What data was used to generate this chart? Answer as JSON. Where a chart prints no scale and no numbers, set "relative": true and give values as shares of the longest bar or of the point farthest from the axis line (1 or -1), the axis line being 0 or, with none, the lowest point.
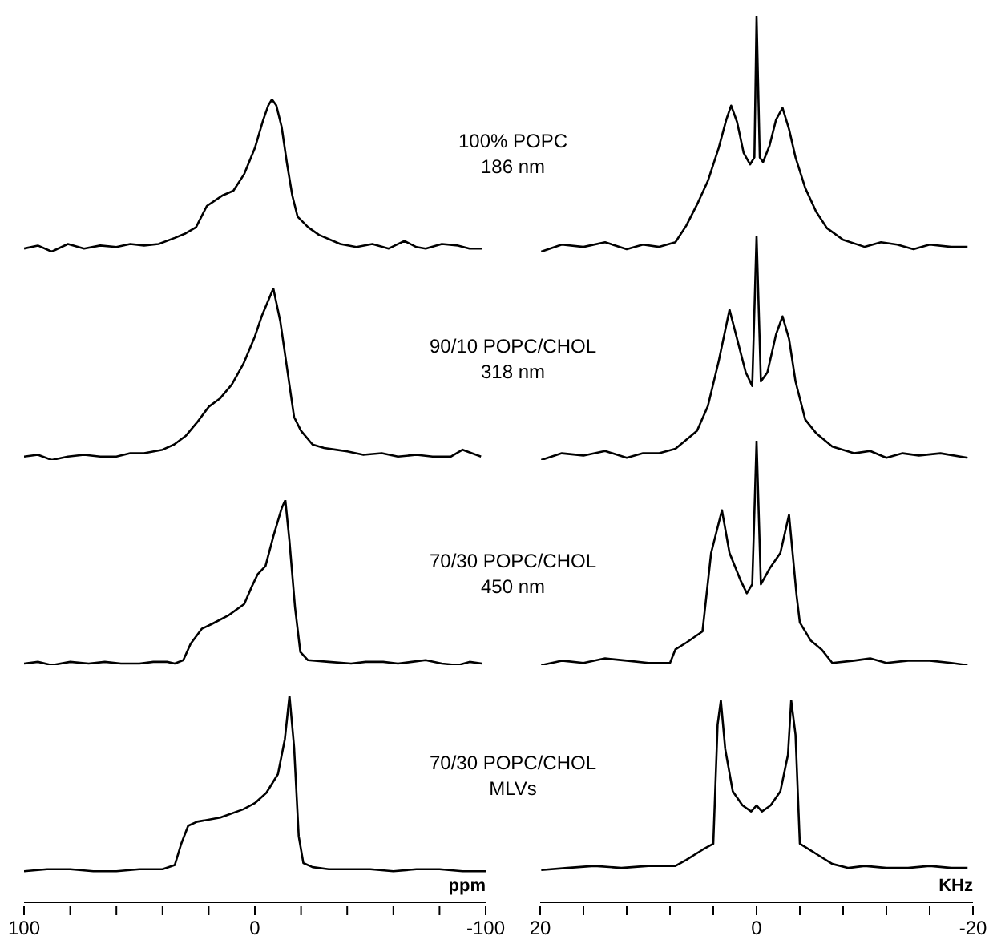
{
  "chart_data": [
    {
      "type": "line",
      "relative": true,
      "xlim": [
        100,
        -100
      ],
      "tick_labels": false,
      "color": "#000000",
      "marker": "none",
      "x": [
        100,
        94,
        88,
        81,
        74,
        67,
        60,
        54,
        48,
        41.7,
        34.7,
        30,
        25.5,
        20.8,
        13.9,
        9.3,
        4.6,
        0,
        -3.5,
        -5.8,
        -7.4,
        -9.3,
        -11.6,
        -13.9,
        -16.2,
        -18.5,
        -23.1,
        -27.8,
        -37,
        -44,
        -50.9,
        -58,
        -64.8,
        -70,
        -74,
        -81,
        -88,
        -93,
        -98.4
      ],
      "values": [
        0.02,
        0.04,
        0,
        0.05,
        0.02,
        0.04,
        0.03,
        0.05,
        0.04,
        0.05,
        0.09,
        0.12,
        0.16,
        0.3,
        0.37,
        0.4,
        0.51,
        0.68,
        0.86,
        0.96,
        1,
        0.96,
        0.82,
        0.58,
        0.37,
        0.23,
        0.16,
        0.11,
        0.05,
        0.03,
        0.05,
        0.02,
        0.07,
        0.03,
        0.02,
        0.05,
        0.04,
        0.02,
        0.02
      ]
    },
    {
      "type": "line",
      "relative": true,
      "xlim": [
        20,
        -20
      ],
      "tick_labels": false,
      "color": "#000000",
      "marker": "none",
      "annotations": [
        "100% POPC",
        "186 nm"
      ],
      "x": [
        19.9,
        18,
        16,
        14,
        12,
        10.5,
        9,
        7.5,
        6.5,
        5.5,
        4.5,
        3.5,
        2.8,
        2.35,
        1.8,
        1.2,
        0.6,
        0.2,
        0,
        -0.3,
        -0.6,
        -1.2,
        -1.8,
        -2.4,
        -3,
        -3.6,
        -4.5,
        -5.5,
        -6.5,
        -8,
        -10,
        -11.5,
        -13,
        -14.5,
        -16,
        -18,
        -19.5
      ],
      "values": [
        0,
        0.03,
        0.02,
        0.04,
        0.01,
        0.03,
        0.02,
        0.04,
        0.11,
        0.2,
        0.3,
        0.44,
        0.56,
        0.62,
        0.55,
        0.42,
        0.37,
        0.4,
        1,
        0.4,
        0.38,
        0.45,
        0.56,
        0.61,
        0.52,
        0.4,
        0.27,
        0.17,
        0.1,
        0.05,
        0.02,
        0.04,
        0.03,
        0.01,
        0.03,
        0.02,
        0.02
      ]
    },
    {
      "type": "line",
      "relative": true,
      "xlim": [
        100,
        -100
      ],
      "tick_labels": false,
      "color": "#000000",
      "marker": "none",
      "x": [
        100,
        94,
        88,
        81,
        74,
        67,
        60,
        54,
        48,
        40,
        35,
        30,
        25,
        20,
        15,
        10,
        5,
        0,
        -3,
        -8,
        -11,
        -14,
        -17,
        -20,
        -25,
        -30,
        -35,
        -40,
        -47,
        -55,
        -62,
        -70,
        -77,
        -85,
        -90,
        -94,
        -98
      ],
      "values": [
        0.02,
        0.03,
        0,
        0.02,
        0.03,
        0.02,
        0.02,
        0.04,
        0.04,
        0.06,
        0.09,
        0.14,
        0.22,
        0.31,
        0.36,
        0.44,
        0.56,
        0.72,
        0.84,
        1,
        0.81,
        0.53,
        0.25,
        0.17,
        0.09,
        0.07,
        0.06,
        0.05,
        0.03,
        0.04,
        0.02,
        0.03,
        0.02,
        0.02,
        0.06,
        0.04,
        0.02
      ]
    },
    {
      "type": "line",
      "relative": true,
      "xlim": [
        20,
        -20
      ],
      "tick_labels": false,
      "color": "#000000",
      "marker": "none",
      "annotations": [
        "90/10 POPC/CHOL",
        "318 nm"
      ],
      "x": [
        19.9,
        18,
        16,
        14,
        12,
        10.5,
        9,
        7.5,
        6,
        5.5,
        4.5,
        3.5,
        2.5,
        1.8,
        1,
        0.4,
        0,
        -0.4,
        -1,
        -1.8,
        -2.4,
        -3,
        -3.6,
        -4.5,
        -5.5,
        -7,
        -9,
        -10.5,
        -12,
        -13.5,
        -15,
        -17,
        -19.5
      ],
      "values": [
        0,
        0.03,
        0.02,
        0.04,
        0.01,
        0.03,
        0.03,
        0.05,
        0.11,
        0.13,
        0.24,
        0.44,
        0.67,
        0.54,
        0.39,
        0.33,
        1,
        0.35,
        0.39,
        0.56,
        0.64,
        0.54,
        0.35,
        0.18,
        0.12,
        0.06,
        0.03,
        0.04,
        0.01,
        0.03,
        0.02,
        0.03,
        0.01
      ]
    },
    {
      "type": "line",
      "relative": true,
      "xlim": [
        100,
        -100
      ],
      "tick_labels": false,
      "color": "#000000",
      "marker": "none",
      "x": [
        100,
        94,
        88,
        80,
        72,
        65,
        58,
        50,
        44,
        38,
        34.7,
        31,
        27.8,
        23,
        18.5,
        11.6,
        4.6,
        1.2,
        -1.2,
        -4.6,
        -8,
        -11.6,
        -13.2,
        -15,
        -17.4,
        -19.7,
        -23,
        -32,
        -41.7,
        -48,
        -55.6,
        -62,
        -68,
        -74,
        -81,
        -88,
        -93,
        -98.4
      ],
      "values": [
        0.01,
        0.02,
        0,
        0.02,
        0.01,
        0.02,
        0.01,
        0.01,
        0.02,
        0.02,
        0.01,
        0.03,
        0.13,
        0.22,
        0.25,
        0.3,
        0.37,
        0.48,
        0.55,
        0.6,
        0.78,
        0.95,
        1,
        0.75,
        0.35,
        0.08,
        0.03,
        0.02,
        0.01,
        0.02,
        0.02,
        0.01,
        0.02,
        0.03,
        0.01,
        0,
        0.02,
        0.01
      ]
    },
    {
      "type": "line",
      "relative": true,
      "xlim": [
        20,
        -20
      ],
      "tick_labels": false,
      "color": "#000000",
      "marker": "none",
      "annotations": [
        "70/30 POPC/CHOL",
        "450 nm"
      ],
      "x": [
        19.9,
        18,
        16,
        14,
        12,
        10,
        8,
        7.5,
        6.5,
        5,
        4.2,
        3.2,
        2.5,
        1.5,
        0.9,
        0.4,
        0,
        -0.4,
        -1.2,
        -2.2,
        -3,
        -3.7,
        -4,
        -5,
        -6,
        -7,
        -9,
        -10.5,
        -12,
        -14,
        -16,
        -18,
        -19.5
      ],
      "values": [
        0,
        0.02,
        0.01,
        0.03,
        0.02,
        0.01,
        0.01,
        0.07,
        0.1,
        0.15,
        0.5,
        0.69,
        0.5,
        0.38,
        0.32,
        0.36,
        1,
        0.36,
        0.43,
        0.5,
        0.67,
        0.31,
        0.19,
        0.11,
        0.07,
        0.01,
        0.02,
        0.03,
        0.01,
        0.02,
        0.02,
        0.01,
        0
      ]
    },
    {
      "type": "line",
      "relative": true,
      "xlim": [
        100,
        -100
      ],
      "xticks": [
        100,
        {
          "value": 80,
          "label": null
        },
        {
          "value": 60,
          "label": null
        },
        {
          "value": 40,
          "label": null
        },
        {
          "value": 20,
          "label": null
        },
        0,
        {
          "value": -20,
          "label": null
        },
        {
          "value": -40,
          "label": null
        },
        {
          "value": -60,
          "label": null
        },
        {
          "value": -80,
          "label": null
        },
        -100
      ],
      "tick_labels": "x",
      "xlabel": "ppm",
      "color": "#000000",
      "marker": "none",
      "x": [
        100,
        90,
        80,
        70,
        60,
        50,
        40,
        34.7,
        32,
        28.9,
        25,
        15,
        5,
        0,
        -5,
        -10,
        -13,
        -15,
        -17,
        -19,
        -21,
        -25,
        -32,
        -40,
        -50,
        -60,
        -70,
        -80,
        -90,
        -100
      ],
      "values": [
        0.15,
        0.16,
        0.16,
        0.15,
        0.15,
        0.16,
        0.16,
        0.18,
        0.28,
        0.37,
        0.39,
        0.41,
        0.45,
        0.48,
        0.53,
        0.62,
        0.79,
        1,
        0.75,
        0.32,
        0.19,
        0.17,
        0.16,
        0.16,
        0.16,
        0.15,
        0.16,
        0.16,
        0.15,
        0.15
      ]
    },
    {
      "type": "line",
      "relative": true,
      "xlim": [
        20,
        -20
      ],
      "xticks": [
        20,
        {
          "value": 16,
          "label": null
        },
        {
          "value": 12,
          "label": null
        },
        {
          "value": 8,
          "label": null
        },
        {
          "value": 4,
          "label": null
        },
        0,
        {
          "value": -4,
          "label": null
        },
        {
          "value": -8,
          "label": null
        },
        {
          "value": -12,
          "label": null
        },
        {
          "value": -16,
          "label": null
        },
        -20
      ],
      "tick_labels": "x",
      "xlabel": "KHz",
      "color": "#000000",
      "marker": "none",
      "annotations": [
        "70/30 POPC/CHOL",
        "MLVs"
      ],
      "x": [
        19.9,
        17.5,
        15,
        12.5,
        10,
        7.5,
        6.5,
        5,
        4,
        3.6,
        3.3,
        2.9,
        2.2,
        1.3,
        0.5,
        0,
        -0.5,
        -1.3,
        -2.2,
        -2.9,
        -3.2,
        -3.6,
        -4,
        -5.5,
        -7,
        -8.5,
        -10,
        -12,
        -14,
        -16,
        -18,
        -19.5
      ],
      "values": [
        0.16,
        0.17,
        0.18,
        0.17,
        0.18,
        0.18,
        0.21,
        0.26,
        0.29,
        0.88,
        1,
        0.76,
        0.55,
        0.48,
        0.45,
        0.48,
        0.45,
        0.48,
        0.55,
        0.73,
        1,
        0.83,
        0.29,
        0.24,
        0.19,
        0.17,
        0.18,
        0.17,
        0.17,
        0.18,
        0.17,
        0.17
      ]
    }
  ]
}
